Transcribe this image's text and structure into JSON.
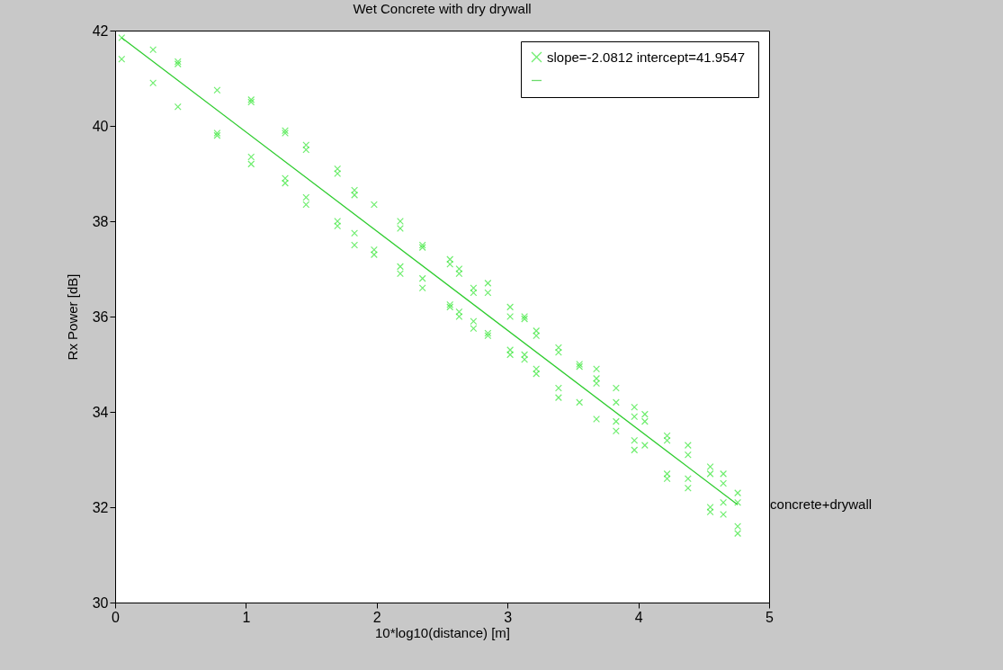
{
  "chart_data": {
    "type": "scatter",
    "title": "Wet Concrete with dry drywall",
    "xlabel": "10*log10(distance) [m]",
    "ylabel": "Rx Power [dB]",
    "xlim": [
      0,
      5
    ],
    "ylim": [
      30,
      42
    ],
    "xticks": [
      0,
      1,
      2,
      3,
      4,
      5
    ],
    "yticks": [
      30,
      32,
      34,
      36,
      38,
      40,
      42
    ],
    "grid": false,
    "legend": "top right",
    "annotations": [
      {
        "text": "concrete+drywall",
        "x": 4.76,
        "y": 32.05
      }
    ],
    "series": [
      {
        "name": "slope=-2.0812  intercept=41.9547",
        "marker": "cross",
        "color": "#33e633",
        "x": [
          0.05,
          0.05,
          0.29,
          0.29,
          0.48,
          0.48,
          0.48,
          0.78,
          0.78,
          0.78,
          1.04,
          1.04,
          1.04,
          1.04,
          1.3,
          1.3,
          1.3,
          1.3,
          1.46,
          1.46,
          1.46,
          1.46,
          1.7,
          1.7,
          1.7,
          1.7,
          1.83,
          1.83,
          1.83,
          1.83,
          1.98,
          1.98,
          1.98,
          2.18,
          2.18,
          2.18,
          2.18,
          2.35,
          2.35,
          2.35,
          2.35,
          2.56,
          2.56,
          2.56,
          2.56,
          2.63,
          2.63,
          2.63,
          2.63,
          2.74,
          2.74,
          2.74,
          2.74,
          2.85,
          2.85,
          2.85,
          2.85,
          3.02,
          3.02,
          3.02,
          3.02,
          3.13,
          3.13,
          3.13,
          3.13,
          3.22,
          3.22,
          3.22,
          3.22,
          3.39,
          3.39,
          3.39,
          3.39,
          3.55,
          3.55,
          3.55,
          3.68,
          3.68,
          3.68,
          3.68,
          3.83,
          3.83,
          3.83,
          3.83,
          3.97,
          3.97,
          3.97,
          3.97,
          4.05,
          4.05,
          4.05,
          4.22,
          4.22,
          4.22,
          4.22,
          4.38,
          4.38,
          4.38,
          4.38,
          4.55,
          4.55,
          4.55,
          4.55,
          4.65,
          4.65,
          4.65,
          4.65,
          4.76,
          4.76,
          4.76,
          4.76
        ],
        "values": [
          41.85,
          41.4,
          41.6,
          40.9,
          41.35,
          41.3,
          40.4,
          40.75,
          39.85,
          39.8,
          40.55,
          40.5,
          39.35,
          39.2,
          39.9,
          39.85,
          38.9,
          38.8,
          39.6,
          39.5,
          38.5,
          38.35,
          39.1,
          39.0,
          38.0,
          37.9,
          38.65,
          38.55,
          37.75,
          37.5,
          38.35,
          37.4,
          37.3,
          38.0,
          37.85,
          37.05,
          36.9,
          37.5,
          37.45,
          36.8,
          36.6,
          37.2,
          37.1,
          36.25,
          36.2,
          37.0,
          36.9,
          36.1,
          36.0,
          36.6,
          36.5,
          35.9,
          35.75,
          36.7,
          36.5,
          35.65,
          35.6,
          36.2,
          36.0,
          35.3,
          35.2,
          36.0,
          35.95,
          35.2,
          35.1,
          35.7,
          35.6,
          34.9,
          34.8,
          35.35,
          35.25,
          34.5,
          34.3,
          35.0,
          34.95,
          34.2,
          34.9,
          34.7,
          34.6,
          33.85,
          34.5,
          34.2,
          33.8,
          33.6,
          34.1,
          33.9,
          33.4,
          33.2,
          33.95,
          33.8,
          33.3,
          33.5,
          33.4,
          32.7,
          32.6,
          33.3,
          33.1,
          32.6,
          32.4,
          32.85,
          32.7,
          32.0,
          31.9,
          32.7,
          32.5,
          32.1,
          31.85,
          32.3,
          32.1,
          31.6,
          31.45
        ]
      },
      {
        "type": "line",
        "color": "#2ecc2e",
        "x": [
          0.05,
          4.76
        ],
        "values": [
          41.85,
          32.05
        ]
      }
    ]
  }
}
